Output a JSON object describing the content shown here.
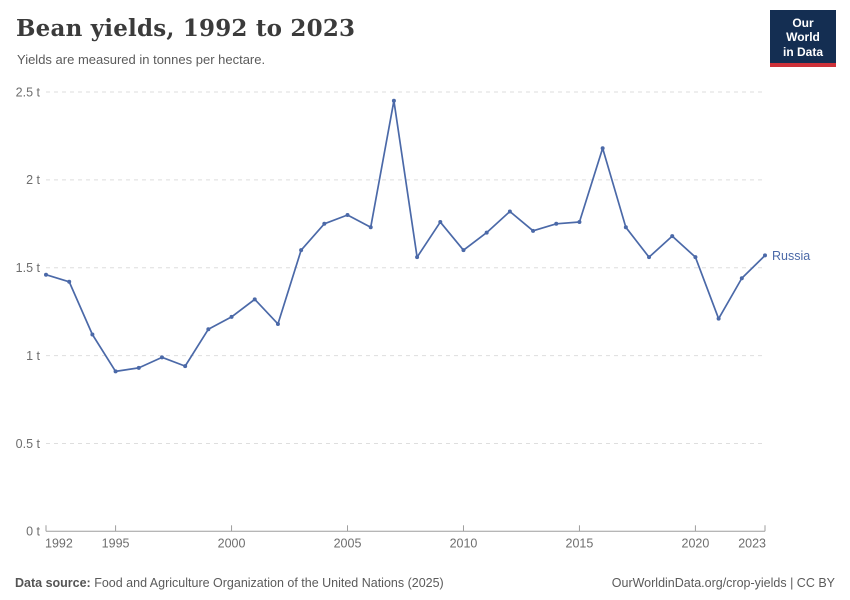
{
  "header": {
    "title": "Bean yields, 1992 to 2023",
    "subtitle": "Yields are measured in tonnes per hectare.",
    "logo": {
      "line1": "Our World",
      "line2": "in Data",
      "bg_color": "#142e52",
      "accent_color": "#cd3139"
    }
  },
  "footer": {
    "source_label": "Data source:",
    "source_text": " Food and Agriculture Organization of the United Nations (2025)",
    "right_text": "OurWorldinData.org/crop-yields | CC BY"
  },
  "chart_data": {
    "type": "line",
    "title": "Bean yields, 1992 to 2023",
    "ylabel": "tonnes per hectare",
    "xlabel": "",
    "xlim": [
      1992,
      2023
    ],
    "ylim": [
      0,
      2.5
    ],
    "grid": "horizontal-dashed",
    "legend_position": "end-of-line-label",
    "x_ticks": [
      1992,
      1995,
      2000,
      2005,
      2010,
      2015,
      2020,
      2023
    ],
    "y_ticks": [
      {
        "value": 0,
        "label": "0 t"
      },
      {
        "value": 0.5,
        "label": "0.5 t"
      },
      {
        "value": 1,
        "label": "1 t"
      },
      {
        "value": 1.5,
        "label": "1.5 t"
      },
      {
        "value": 2,
        "label": "2 t"
      },
      {
        "value": 2.5,
        "label": "2.5 t"
      }
    ],
    "x": [
      1992,
      1993,
      1994,
      1995,
      1996,
      1997,
      1998,
      1999,
      2000,
      2001,
      2002,
      2003,
      2004,
      2005,
      2006,
      2007,
      2008,
      2009,
      2010,
      2011,
      2012,
      2013,
      2014,
      2015,
      2016,
      2017,
      2018,
      2019,
      2020,
      2021,
      2022,
      2023
    ],
    "series": [
      {
        "name": "Russia",
        "color": "#4b69a8",
        "values": [
          1.46,
          1.42,
          1.12,
          0.91,
          0.93,
          0.99,
          0.94,
          1.15,
          1.22,
          1.32,
          1.18,
          1.6,
          1.75,
          1.8,
          1.73,
          2.45,
          1.56,
          1.76,
          1.6,
          1.7,
          1.82,
          1.71,
          1.75,
          1.76,
          2.18,
          1.73,
          1.56,
          1.68,
          1.56,
          1.21,
          1.44,
          1.57
        ]
      }
    ],
    "style": {
      "grid_color": "#dedede",
      "axis_color": "#9e9e9e",
      "tick_label_color": "#6e6e6e",
      "entity_label_color": "#4b69a8"
    }
  }
}
